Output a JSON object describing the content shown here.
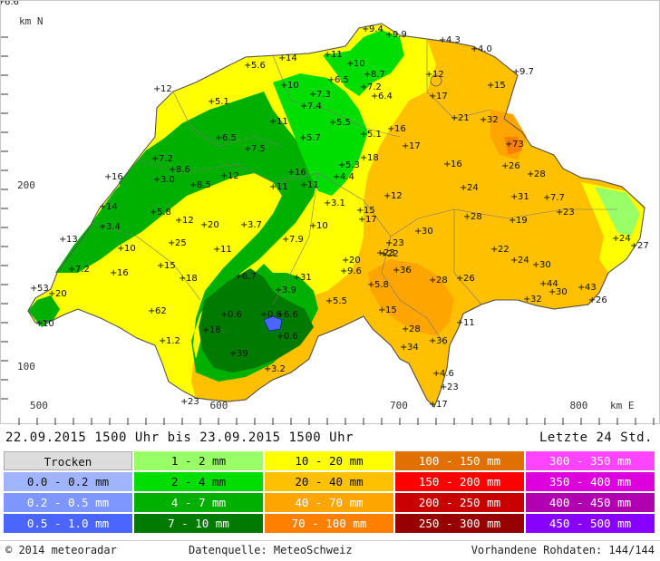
{
  "map": {
    "north_label": "km N",
    "east_label": "km E",
    "y_ticks": [
      {
        "label": "200",
        "value": 200
      },
      {
        "label": "100",
        "value": 100
      }
    ],
    "x_ticks": [
      {
        "label": "500",
        "value": 500
      },
      {
        "label": "600",
        "value": 600
      },
      {
        "label": "700",
        "value": 700
      },
      {
        "label": "800",
        "value": 800
      }
    ],
    "stations": [
      {
        "v": "12"
      },
      {
        "v": "14"
      },
      {
        "v": "5.6"
      },
      {
        "v": "11"
      },
      {
        "v": "10"
      },
      {
        "v": "9.4"
      },
      {
        "v": "9.9"
      },
      {
        "v": "4.3"
      },
      {
        "v": "4.0"
      },
      {
        "v": "6.5"
      },
      {
        "v": "9.7"
      },
      {
        "v": "12"
      },
      {
        "v": "15"
      },
      {
        "v": "8.7"
      },
      {
        "v": "7.2"
      },
      {
        "v": "6.4"
      },
      {
        "v": "17"
      },
      {
        "v": "5.1"
      },
      {
        "v": "10"
      },
      {
        "v": "7.3"
      },
      {
        "v": "7.4"
      },
      {
        "v": "11"
      },
      {
        "v": "5.5"
      },
      {
        "v": "21"
      },
      {
        "v": "32"
      },
      {
        "v": "6.5"
      },
      {
        "v": "7.5"
      },
      {
        "v": "5.7"
      },
      {
        "v": "5.1"
      },
      {
        "v": "16"
      },
      {
        "v": "17"
      },
      {
        "v": "73"
      },
      {
        "v": "16"
      },
      {
        "v": "7.2"
      },
      {
        "v": "8.6"
      },
      {
        "v": "3.0"
      },
      {
        "v": "8.5"
      },
      {
        "v": "12"
      },
      {
        "v": "16"
      },
      {
        "v": "5.3"
      },
      {
        "v": "18"
      },
      {
        "v": "16"
      },
      {
        "v": "26"
      },
      {
        "v": "28"
      },
      {
        "v": "11"
      },
      {
        "v": "11"
      },
      {
        "v": "4.4"
      },
      {
        "v": "24"
      },
      {
        "v": "31"
      },
      {
        "v": "7.7"
      },
      {
        "v": "23"
      },
      {
        "v": "14"
      },
      {
        "v": "5.8"
      },
      {
        "v": "12"
      },
      {
        "v": "20"
      },
      {
        "v": "3.7"
      },
      {
        "v": "3.1"
      },
      {
        "v": "15"
      },
      {
        "v": "12"
      },
      {
        "v": "10"
      },
      {
        "v": "17"
      },
      {
        "v": "28"
      },
      {
        "v": "19"
      },
      {
        "v": "23"
      },
      {
        "v": "3.4"
      },
      {
        "v": "13"
      },
      {
        "v": "25"
      },
      {
        "v": "10"
      },
      {
        "v": "11"
      },
      {
        "v": "7.9"
      },
      {
        "v": "30"
      },
      {
        "v": "23"
      },
      {
        "v": "22"
      },
      {
        "v": "22"
      },
      {
        "v": "24"
      },
      {
        "v": "24"
      },
      {
        "v": "27"
      },
      {
        "v": "30"
      },
      {
        "v": "15"
      },
      {
        "v": "7.2"
      },
      {
        "v": "16"
      },
      {
        "v": "18"
      },
      {
        "v": "6.7"
      },
      {
        "v": "20"
      },
      {
        "v": "9.6"
      },
      {
        "v": "36"
      },
      {
        "v": "28"
      },
      {
        "v": "26"
      },
      {
        "v": "44"
      },
      {
        "v": "30"
      },
      {
        "v": "43"
      },
      {
        "v": "26"
      },
      {
        "v": "32"
      },
      {
        "v": "53"
      },
      {
        "v": "20"
      },
      {
        "v": "3.9"
      },
      {
        "v": "5.5"
      },
      {
        "v": "5.8"
      },
      {
        "v": "62"
      },
      {
        "v": "15"
      },
      {
        "v": "18"
      },
      {
        "v": "0.6"
      },
      {
        "v": "0.6"
      },
      {
        "v": "6.6"
      },
      {
        "v": "0.6"
      },
      {
        "v": "1.2"
      },
      {
        "v": "11"
      },
      {
        "v": "28"
      },
      {
        "v": "34"
      },
      {
        "v": "36"
      },
      {
        "v": "39"
      },
      {
        "v": "3.2"
      },
      {
        "v": "4.6"
      },
      {
        "v": "23"
      },
      {
        "v": "23"
      },
      {
        "v": "17"
      },
      {
        "v": "31"
      },
      {
        "v": "10"
      },
      {
        "v": "6.6"
      }
    ]
  },
  "timebar": {
    "period": "22.09.2015  1500 Uhr   bis   23.09.2015  1500 Uhr",
    "window": "Letzte 24 Std."
  },
  "legend": {
    "cells": [
      {
        "label": "Trocken",
        "color": "#dcdcdc",
        "text": "#111"
      },
      {
        "label": "1 - 2 mm",
        "color": "#99ff66",
        "text": "#111"
      },
      {
        "label": "10 - 20 mm",
        "color": "#ffff00",
        "text": "#111"
      },
      {
        "label": "100 - 150 mm",
        "color": "#e07000",
        "text": "#fff"
      },
      {
        "label": "300 - 350 mm",
        "color": "#ff44ff",
        "text": "#fff"
      },
      {
        "label": "0.0 - 0.2 mm",
        "color": "#a0b4ff",
        "text": "#111"
      },
      {
        "label": "2 - 4 mm",
        "color": "#00dd00",
        "text": "#111"
      },
      {
        "label": "20 - 40 mm",
        "color": "#ffc000",
        "text": "#111"
      },
      {
        "label": "150 - 200 mm",
        "color": "#ff0000",
        "text": "#fff"
      },
      {
        "label": "350 - 400 mm",
        "color": "#dd00dd",
        "text": "#fff"
      },
      {
        "label": "0.2 - 0.5 mm",
        "color": "#7e96ff",
        "text": "#fff"
      },
      {
        "label": "4 - 7 mm",
        "color": "#00b000",
        "text": "#fff"
      },
      {
        "label": "40 - 70 mm",
        "color": "#ffa500",
        "text": "#fff"
      },
      {
        "label": "200 - 250 mm",
        "color": "#c80000",
        "text": "#fff"
      },
      {
        "label": "400 - 450 mm",
        "color": "#b000b0",
        "text": "#fff"
      },
      {
        "label": "0.5 - 1.0 mm",
        "color": "#4a66ff",
        "text": "#fff"
      },
      {
        "label": "7 - 10 mm",
        "color": "#007a00",
        "text": "#fff"
      },
      {
        "label": "70 - 100 mm",
        "color": "#ff8000",
        "text": "#fff"
      },
      {
        "label": "250 - 300 mm",
        "color": "#960000",
        "text": "#fff"
      },
      {
        "label": "450 - 500 mm",
        "color": "#8800ff",
        "text": "#fff"
      }
    ]
  },
  "footer": {
    "copyright": "© 2014  meteoradar",
    "source": "Datenquelle: MeteoSchweiz",
    "rawdata": "Vorhandene Rohdaten: 144/144"
  }
}
